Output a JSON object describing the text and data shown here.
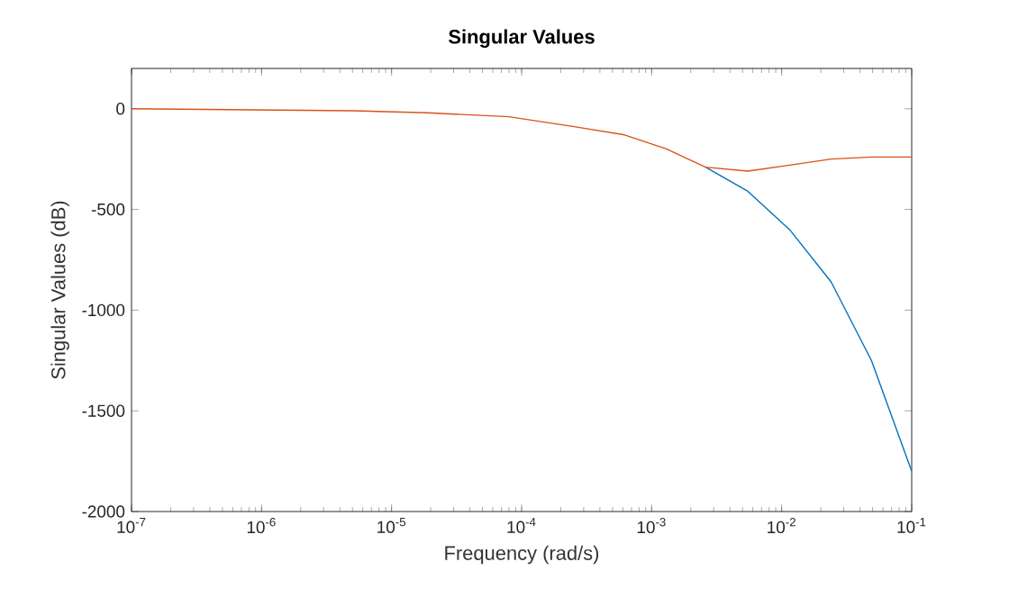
{
  "chart_data": {
    "type": "line",
    "title": "Singular Values",
    "xlabel": "Frequency (rad/s)",
    "ylabel": "Singular Values (dB)",
    "log": "x",
    "xlim": [
      1e-07,
      0.1
    ],
    "ylim": [
      -2000,
      200
    ],
    "xticks": [
      {
        "value": 1e-07,
        "label": "10$^{-7}$"
      },
      {
        "value": 1e-06,
        "label": "10$^{-6}$"
      },
      {
        "value": 1e-05,
        "label": "10$^{-5}$"
      },
      {
        "value": 0.0001,
        "label": "10$^{-4}$"
      },
      {
        "value": 0.001,
        "label": "10$^{-3}$"
      },
      {
        "value": 0.01,
        "label": "10$^{-2}$"
      },
      {
        "value": 0.1,
        "label": "10$^{-1}$"
      }
    ],
    "yticks": [
      -2000,
      -1500,
      -1000,
      -500,
      0
    ],
    "grid": false,
    "marker": "none",
    "line_style": "solid",
    "series": [
      {
        "color": "#0072bd",
        "x": [
          0.0026,
          0.0055,
          0.0115,
          0.024,
          0.049,
          0.1
        ],
        "values": [
          -290,
          -410,
          -600,
          -860,
          -1250,
          -1800
        ]
      },
      {
        "color": "#d95319",
        "x": [
          1e-07,
          5.1e-06,
          1.9e-05,
          8e-05,
          0.00026,
          0.00062,
          0.0013,
          0.0026,
          0.0055,
          0.0115,
          0.024,
          0.049,
          0.1
        ],
        "values": [
          0,
          -10,
          -20,
          -40,
          -90,
          -130,
          -200,
          -290,
          -310,
          -280,
          -250,
          -240,
          -240
        ]
      }
    ]
  }
}
